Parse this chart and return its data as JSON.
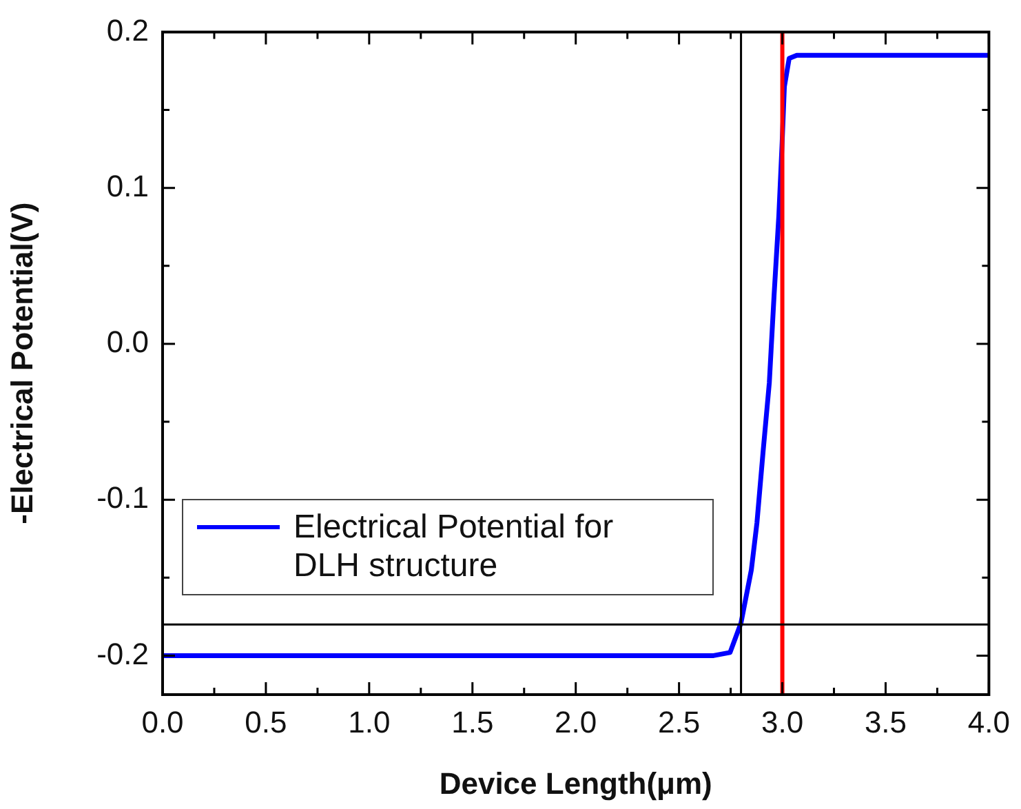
{
  "chart_data": {
    "type": "line",
    "xlabel": "Device Length(μm)",
    "ylabel": "-Electrical Potential(V)",
    "xlim": [
      0,
      4
    ],
    "ylim": [
      -0.225,
      0.2
    ],
    "xticks": [
      {
        "value": 0,
        "label": "0.0"
      },
      {
        "value": 0.25,
        "label": null
      },
      {
        "value": 0.5,
        "label": "0.5"
      },
      {
        "value": 0.75,
        "label": null
      },
      {
        "value": 1,
        "label": "1.0"
      },
      {
        "value": 1.25,
        "label": null
      },
      {
        "value": 1.5,
        "label": "1.5"
      },
      {
        "value": 1.75,
        "label": null
      },
      {
        "value": 2,
        "label": "2.0"
      },
      {
        "value": 2.25,
        "label": null
      },
      {
        "value": 2.5,
        "label": "2.5"
      },
      {
        "value": 2.75,
        "label": null
      },
      {
        "value": 3,
        "label": "3.0"
      },
      {
        "value": 3.25,
        "label": null
      },
      {
        "value": 3.5,
        "label": "3.5"
      },
      {
        "value": 3.75,
        "label": null
      },
      {
        "value": 4,
        "label": "4.0"
      }
    ],
    "yticks": [
      {
        "value": -0.2,
        "label": "-0.2"
      },
      {
        "value": -0.15,
        "label": null
      },
      {
        "value": -0.1,
        "label": "-0.1"
      },
      {
        "value": -0.05,
        "label": null
      },
      {
        "value": 0,
        "label": "0.0"
      },
      {
        "value": 0.05,
        "label": null
      },
      {
        "value": 0.1,
        "label": "0.1"
      },
      {
        "value": 0.15,
        "label": null
      },
      {
        "value": 0.2,
        "label": "0.2"
      }
    ],
    "grid": false,
    "legend": "bottom left",
    "marker": "none",
    "line_style": "solid",
    "series": [
      {
        "name": "Electrical Potential for DLH structure",
        "color": "#0000ff",
        "x": [
          0,
          1,
          2,
          2.5,
          2.667,
          2.747,
          2.8,
          2.85,
          2.877,
          2.907,
          2.937,
          2.96,
          2.983,
          2.999,
          3.01,
          3.033,
          3.07,
          3.5,
          4
        ],
        "values": [
          -0.2,
          -0.2,
          -0.2,
          -0.2,
          -0.2,
          -0.198,
          -0.179,
          -0.145,
          -0.115,
          -0.069,
          -0.025,
          0.031,
          0.082,
          0.129,
          0.165,
          0.183,
          0.185,
          0.185,
          0.185
        ]
      }
    ],
    "ref_lines": [
      {
        "axis": "x",
        "value": 2.8,
        "color": "#000000"
      },
      {
        "axis": "x",
        "value": 3.0,
        "color": "#ff0000"
      },
      {
        "axis": "y",
        "value": -0.18,
        "color": "#000000"
      }
    ]
  }
}
